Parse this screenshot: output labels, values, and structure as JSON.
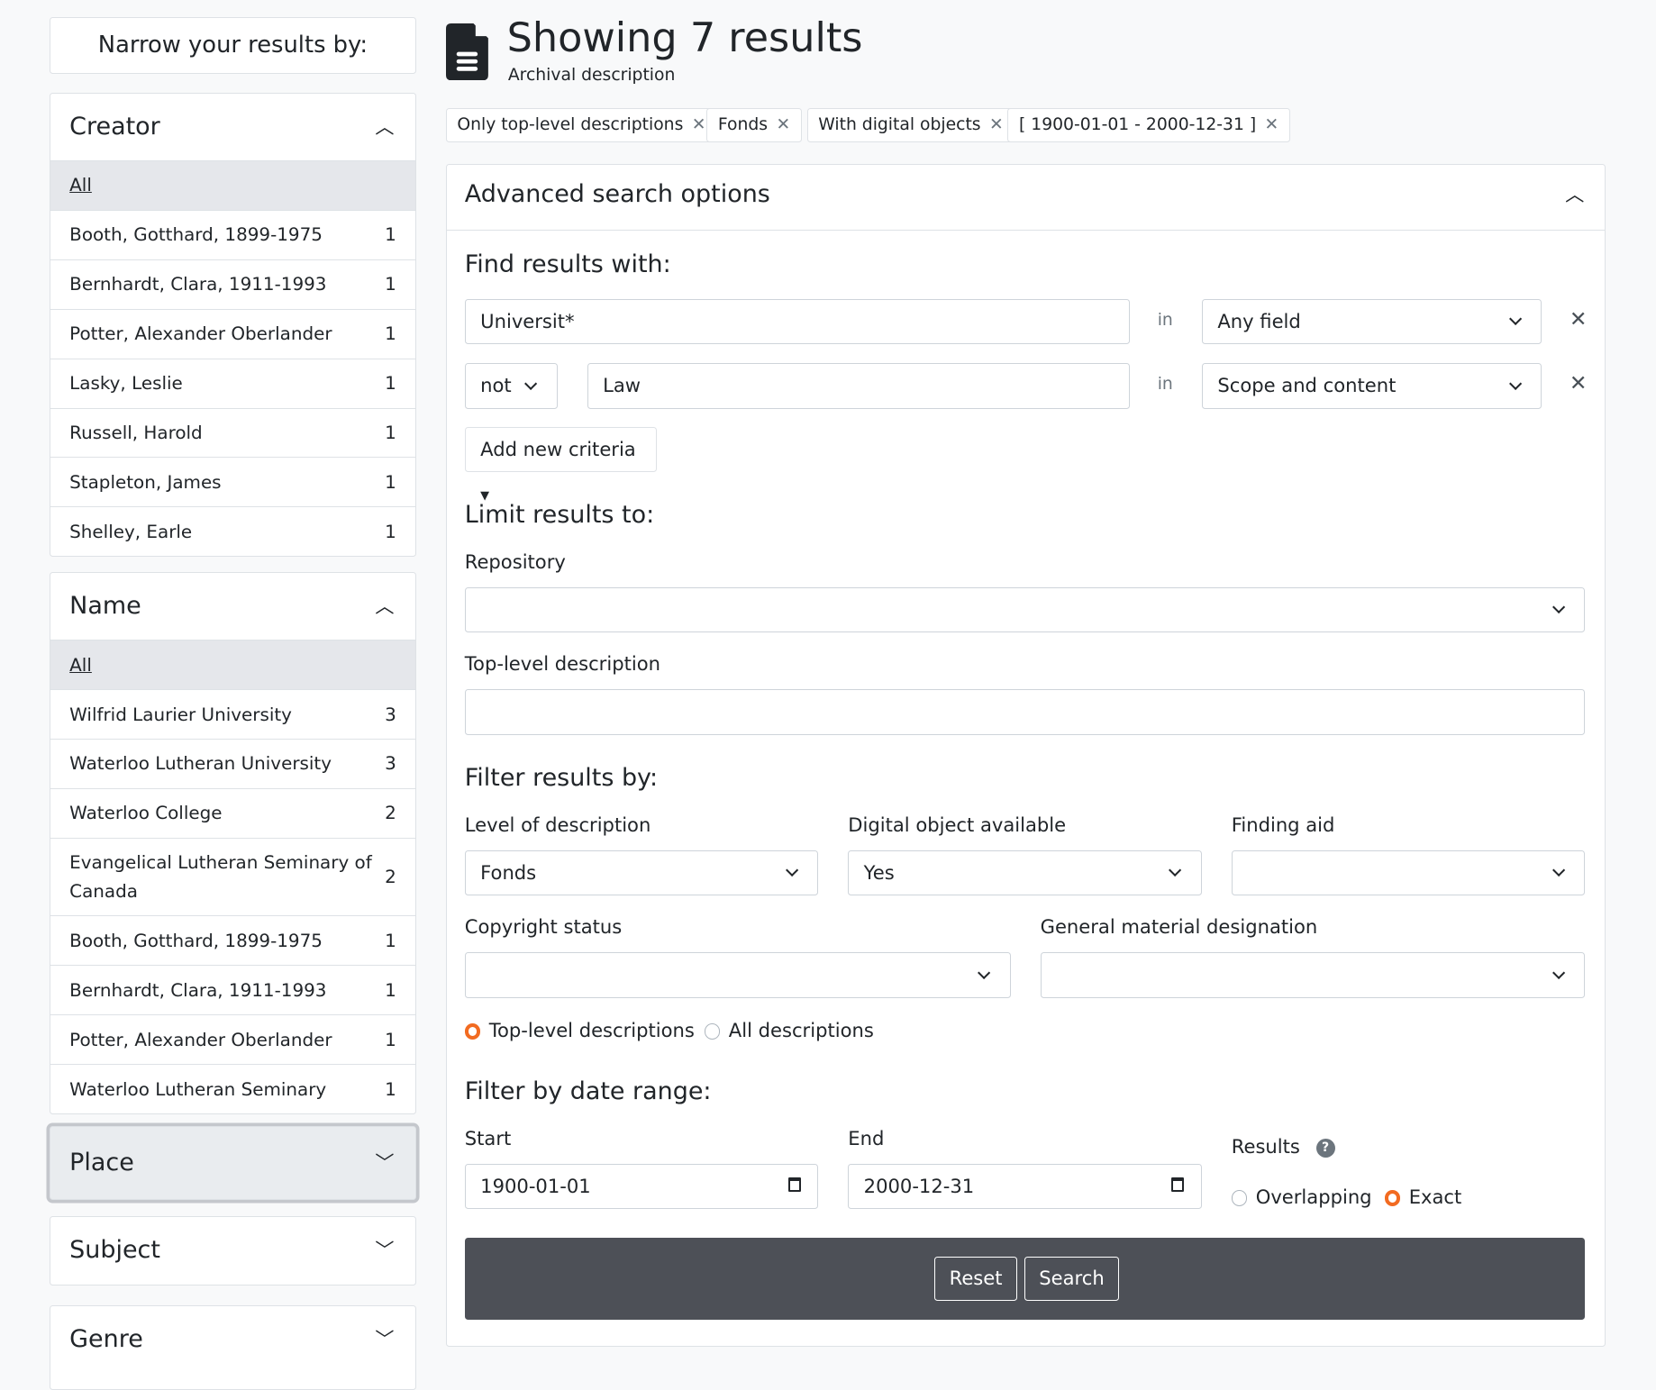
{
  "sidebar": {
    "title": "Narrow your results by:",
    "creator": {
      "title": "Creator",
      "all": "All",
      "items": [
        {
          "label": "Booth, Gotthard, 1899-1975",
          "count": "1"
        },
        {
          "label": "Bernhardt, Clara, 1911-1993",
          "count": "1"
        },
        {
          "label": "Potter, Alexander Oberlander",
          "count": "1"
        },
        {
          "label": "Lasky, Leslie",
          "count": "1"
        },
        {
          "label": "Russell, Harold",
          "count": "1"
        },
        {
          "label": "Stapleton, James",
          "count": "1"
        },
        {
          "label": "Shelley, Earle",
          "count": "1"
        }
      ]
    },
    "name": {
      "title": "Name",
      "all": "All",
      "items": [
        {
          "label": "Wilfrid Laurier University",
          "count": "3"
        },
        {
          "label": "Waterloo Lutheran University",
          "count": "3"
        },
        {
          "label": "Waterloo College",
          "count": "2"
        },
        {
          "label": "Evangelical Lutheran Seminary of Canada",
          "count": "2"
        },
        {
          "label": "Booth, Gotthard, 1899-1975",
          "count": "1"
        },
        {
          "label": "Bernhardt, Clara, 1911-1993",
          "count": "1"
        },
        {
          "label": "Potter, Alexander Oberlander",
          "count": "1"
        },
        {
          "label": "Waterloo Lutheran Seminary",
          "count": "1"
        }
      ]
    },
    "place": "Place",
    "subject": "Subject",
    "genre": "Genre"
  },
  "header": {
    "title": "Showing 7 results",
    "subtitle": "Archival description"
  },
  "filters": [
    "Only top-level descriptions",
    "Fonds",
    "With digital objects",
    "[ 1900-01-01 - 2000-12-31 ]"
  ],
  "advanced": {
    "title": "Advanced search options",
    "find": "Find results with:",
    "criteria": [
      {
        "value": "Universit*",
        "in": "in",
        "field": "Any field"
      },
      {
        "op": "not",
        "value": "Law",
        "in": "in",
        "field": "Scope and content"
      }
    ],
    "add": "Add new criteria",
    "limit": "Limit results to:",
    "repository": "Repository",
    "toplevel": "Top-level description",
    "filterby": "Filter results by:",
    "level": "Level of description",
    "level_value": "Fonds",
    "digital": "Digital object available",
    "digital_value": "Yes",
    "finding": "Finding aid",
    "copyright": "Copyright status",
    "gmd": "General material designation",
    "radio_top": "Top-level descriptions",
    "radio_all": "All descriptions",
    "daterange": "Filter by date range:",
    "start": "Start",
    "start_value": "1900-01-01",
    "end": "End",
    "end_value": "2000-12-31",
    "results": "Results",
    "overlapping": "Overlapping",
    "exact": "Exact",
    "reset": "Reset",
    "search": "Search"
  },
  "colors": {
    "accent": "#f26b21",
    "bar": "#4d5057"
  }
}
